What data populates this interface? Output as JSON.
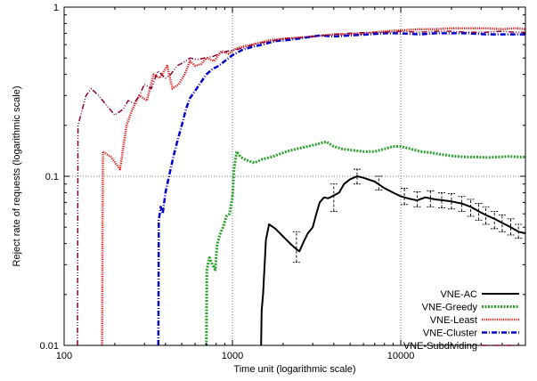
{
  "chart_data": {
    "type": "line",
    "title": "",
    "xlabel": "Time unit (logarithmic scale)",
    "ylabel": "Reject rate of requests (logarithmic scale)",
    "x_scale": "log",
    "y_scale": "log",
    "xlim": [
      100,
      55000
    ],
    "ylim": [
      0.01,
      1
    ],
    "x_ticks": [
      {
        "value": 100,
        "label": "100"
      },
      {
        "value": 1000,
        "label": "1000"
      },
      {
        "value": 10000,
        "label": "10000"
      }
    ],
    "y_ticks": [
      {
        "value": 0.01,
        "label": "0.01"
      },
      {
        "value": 0.1,
        "label": "0.1"
      },
      {
        "value": 1,
        "label": "1"
      }
    ],
    "grid": "dotted reference lines at x=1000, x=10000 and y=0.1",
    "legend_position": "bottom-right",
    "series": [
      {
        "name": "VNE-AC",
        "color": "#000000",
        "dash": "solid",
        "width": 2,
        "points": [
          [
            1480,
            0.01
          ],
          [
            1490,
            0.016
          ],
          [
            1520,
            0.02
          ],
          [
            1580,
            0.042
          ],
          [
            1650,
            0.052
          ],
          [
            1800,
            0.049
          ],
          [
            2000,
            0.044
          ],
          [
            2200,
            0.04
          ],
          [
            2400,
            0.037
          ],
          [
            2500,
            0.036
          ],
          [
            2650,
            0.041
          ],
          [
            2800,
            0.046
          ],
          [
            3000,
            0.05
          ],
          [
            3150,
            0.06
          ],
          [
            3300,
            0.07
          ],
          [
            3500,
            0.075
          ],
          [
            3700,
            0.074
          ],
          [
            4000,
            0.077
          ],
          [
            4300,
            0.08
          ],
          [
            4600,
            0.09
          ],
          [
            5000,
            0.096
          ],
          [
            5500,
            0.1
          ],
          [
            6000,
            0.098
          ],
          [
            7000,
            0.093
          ],
          [
            8000,
            0.085
          ],
          [
            9000,
            0.08
          ],
          [
            10000,
            0.076
          ],
          [
            11000,
            0.074
          ],
          [
            12500,
            0.072
          ],
          [
            14000,
            0.075
          ],
          [
            16000,
            0.073
          ],
          [
            18000,
            0.072
          ],
          [
            20000,
            0.071
          ],
          [
            23000,
            0.069
          ],
          [
            26000,
            0.066
          ],
          [
            29000,
            0.062
          ],
          [
            32000,
            0.059
          ],
          [
            36000,
            0.056
          ],
          [
            40000,
            0.053
          ],
          [
            45000,
            0.05
          ],
          [
            50000,
            0.047
          ],
          [
            55000,
            0.046
          ]
        ],
        "error_bars": [
          {
            "x": 2400,
            "low": 0.031,
            "high": 0.047
          },
          {
            "x": 4000,
            "low": 0.062,
            "high": 0.09
          },
          {
            "x": 5500,
            "low": 0.09,
            "high": 0.11
          },
          {
            "x": 7400,
            "low": 0.083,
            "high": 0.1
          },
          {
            "x": 10500,
            "low": 0.068,
            "high": 0.085
          },
          {
            "x": 12500,
            "low": 0.066,
            "high": 0.081
          },
          {
            "x": 15000,
            "low": 0.066,
            "high": 0.082
          },
          {
            "x": 17500,
            "low": 0.065,
            "high": 0.08
          },
          {
            "x": 20000,
            "low": 0.064,
            "high": 0.079
          },
          {
            "x": 23000,
            "low": 0.062,
            "high": 0.076
          },
          {
            "x": 26000,
            "low": 0.058,
            "high": 0.073
          },
          {
            "x": 29000,
            "low": 0.055,
            "high": 0.069
          },
          {
            "x": 32000,
            "low": 0.052,
            "high": 0.066
          },
          {
            "x": 36000,
            "low": 0.049,
            "high": 0.062
          },
          {
            "x": 40000,
            "low": 0.047,
            "high": 0.059
          },
          {
            "x": 45000,
            "low": 0.045,
            "high": 0.056
          },
          {
            "x": 50000,
            "low": 0.043,
            "high": 0.052
          }
        ]
      },
      {
        "name": "VNE-Greedy",
        "color": "#2ca02c",
        "dash": "2,1.5",
        "width": 3,
        "points": [
          [
            700,
            0.01
          ],
          [
            705,
            0.028
          ],
          [
            730,
            0.033
          ],
          [
            760,
            0.03
          ],
          [
            790,
            0.028
          ],
          [
            810,
            0.039
          ],
          [
            840,
            0.045
          ],
          [
            880,
            0.05
          ],
          [
            920,
            0.058
          ],
          [
            960,
            0.06
          ],
          [
            1000,
            0.075
          ],
          [
            1020,
            0.11
          ],
          [
            1060,
            0.14
          ],
          [
            1120,
            0.13
          ],
          [
            1200,
            0.125
          ],
          [
            1350,
            0.12
          ],
          [
            1500,
            0.126
          ],
          [
            1700,
            0.13
          ],
          [
            1900,
            0.135
          ],
          [
            2100,
            0.14
          ],
          [
            2400,
            0.145
          ],
          [
            2800,
            0.15
          ],
          [
            3200,
            0.155
          ],
          [
            3600,
            0.16
          ],
          [
            4000,
            0.15
          ],
          [
            4500,
            0.145
          ],
          [
            5000,
            0.143
          ],
          [
            6000,
            0.14
          ],
          [
            7000,
            0.14
          ],
          [
            8000,
            0.145
          ],
          [
            9000,
            0.15
          ],
          [
            10000,
            0.15
          ],
          [
            11500,
            0.145
          ],
          [
            13000,
            0.14
          ],
          [
            15000,
            0.138
          ],
          [
            17000,
            0.135
          ],
          [
            20000,
            0.132
          ],
          [
            24000,
            0.13
          ],
          [
            28000,
            0.13
          ],
          [
            32000,
            0.129
          ],
          [
            38000,
            0.13
          ],
          [
            44000,
            0.131
          ],
          [
            50000,
            0.13
          ],
          [
            55000,
            0.13
          ]
        ]
      },
      {
        "name": "VNE-Least",
        "color": "#e0201c",
        "dash": "1.2,1.2",
        "width": 2.5,
        "points": [
          [
            168,
            0.01
          ],
          [
            170,
            0.14
          ],
          [
            190,
            0.13
          ],
          [
            215,
            0.11
          ],
          [
            235,
            0.2
          ],
          [
            255,
            0.25
          ],
          [
            280,
            0.3
          ],
          [
            310,
            0.28
          ],
          [
            340,
            0.4
          ],
          [
            370,
            0.38
          ],
          [
            410,
            0.45
          ],
          [
            440,
            0.33
          ],
          [
            480,
            0.35
          ],
          [
            520,
            0.4
          ],
          [
            560,
            0.48
          ],
          [
            600,
            0.45
          ],
          [
            650,
            0.46
          ],
          [
            700,
            0.5
          ],
          [
            780,
            0.48
          ],
          [
            860,
            0.55
          ],
          [
            950,
            0.53
          ],
          [
            1050,
            0.57
          ],
          [
            1200,
            0.59
          ],
          [
            1400,
            0.61
          ],
          [
            1700,
            0.64
          ],
          [
            2000,
            0.65
          ],
          [
            2500,
            0.66
          ],
          [
            3000,
            0.67
          ],
          [
            4000,
            0.69
          ],
          [
            5000,
            0.69
          ],
          [
            6500,
            0.7
          ],
          [
            8000,
            0.72
          ],
          [
            10000,
            0.73
          ],
          [
            13000,
            0.74
          ],
          [
            16000,
            0.74
          ],
          [
            20000,
            0.75
          ],
          [
            25000,
            0.75
          ],
          [
            32000,
            0.75
          ],
          [
            40000,
            0.74
          ],
          [
            48000,
            0.75
          ],
          [
            55000,
            0.74
          ]
        ]
      },
      {
        "name": "VNE-Cluster",
        "color": "#0000cc",
        "dash": "6,2,1,2",
        "width": 2.5,
        "points": [
          [
            363,
            0.01
          ],
          [
            365,
            0.055
          ],
          [
            375,
            0.066
          ],
          [
            385,
            0.06
          ],
          [
            400,
            0.08
          ],
          [
            420,
            0.1
          ],
          [
            445,
            0.13
          ],
          [
            470,
            0.16
          ],
          [
            500,
            0.2
          ],
          [
            530,
            0.25
          ],
          [
            560,
            0.29
          ],
          [
            600,
            0.32
          ],
          [
            650,
            0.36
          ],
          [
            700,
            0.4
          ],
          [
            760,
            0.43
          ],
          [
            830,
            0.45
          ],
          [
            900,
            0.48
          ],
          [
            1000,
            0.52
          ],
          [
            1150,
            0.56
          ],
          [
            1300,
            0.58
          ],
          [
            1500,
            0.6
          ],
          [
            1800,
            0.63
          ],
          [
            2200,
            0.64
          ],
          [
            2700,
            0.66
          ],
          [
            3300,
            0.68
          ],
          [
            4000,
            0.67
          ],
          [
            5000,
            0.68
          ],
          [
            6500,
            0.69
          ],
          [
            8000,
            0.7
          ],
          [
            10000,
            0.7
          ],
          [
            13000,
            0.69
          ],
          [
            16000,
            0.7
          ],
          [
            20000,
            0.7
          ],
          [
            25000,
            0.7
          ],
          [
            32000,
            0.69
          ],
          [
            40000,
            0.69
          ],
          [
            48000,
            0.69
          ],
          [
            55000,
            0.69
          ]
        ]
      },
      {
        "name": "VNE-Subdividing",
        "color": "#8b0030",
        "dash": "6,2,1,2,1,2",
        "width": 1.5,
        "points": [
          [
            120,
            0.01
          ],
          [
            121,
            0.2
          ],
          [
            135,
            0.3
          ],
          [
            145,
            0.33
          ],
          [
            160,
            0.3
          ],
          [
            180,
            0.26
          ],
          [
            200,
            0.23
          ],
          [
            225,
            0.25
          ],
          [
            240,
            0.28
          ],
          [
            260,
            0.27
          ],
          [
            280,
            0.3
          ],
          [
            300,
            0.35
          ],
          [
            330,
            0.33
          ],
          [
            360,
            0.42
          ],
          [
            400,
            0.38
          ],
          [
            430,
            0.4
          ],
          [
            470,
            0.45
          ],
          [
            510,
            0.47
          ],
          [
            560,
            0.5
          ],
          [
            620,
            0.49
          ],
          [
            680,
            0.5
          ],
          [
            760,
            0.51
          ],
          [
            840,
            0.53
          ],
          [
            940,
            0.55
          ],
          [
            1050,
            0.56
          ],
          [
            1200,
            0.58
          ],
          [
            1400,
            0.61
          ],
          [
            1700,
            0.63
          ],
          [
            2000,
            0.65
          ],
          [
            2500,
            0.66
          ],
          [
            3000,
            0.67
          ],
          [
            4000,
            0.69
          ],
          [
            5000,
            0.7
          ],
          [
            6500,
            0.71
          ],
          [
            8000,
            0.71
          ],
          [
            10000,
            0.72
          ],
          [
            13000,
            0.71
          ],
          [
            16000,
            0.72
          ],
          [
            20000,
            0.72
          ],
          [
            25000,
            0.71
          ],
          [
            32000,
            0.71
          ],
          [
            40000,
            0.72
          ],
          [
            48000,
            0.71
          ],
          [
            55000,
            0.71
          ]
        ]
      }
    ]
  }
}
